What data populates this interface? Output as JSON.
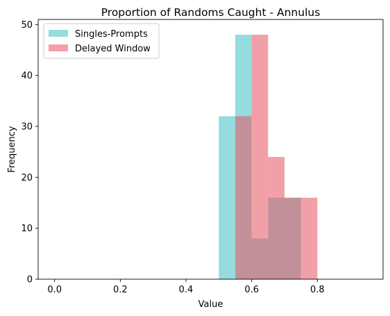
{
  "chart_data": {
    "type": "histogram",
    "title": "Proportion of Randoms Caught - Annulus",
    "xlabel": "Value",
    "ylabel": "Frequency",
    "xlim": [
      -0.05,
      1.0
    ],
    "ylim": [
      0,
      51
    ],
    "xticks": [
      "0.0",
      "0.2",
      "0.4",
      "0.6",
      "0.8"
    ],
    "yticks": [
      "0",
      "10",
      "20",
      "30",
      "40",
      "50"
    ],
    "grid": false,
    "legend_position": "top-left",
    "bin_edges": [
      0.5,
      0.55,
      0.6,
      0.65,
      0.7,
      0.75,
      0.8
    ],
    "series": [
      {
        "name": "Singles-Prompts",
        "color": "#4ec5ca",
        "alpha": 0.6,
        "values": [
          32,
          48,
          8,
          16,
          16,
          0
        ]
      },
      {
        "name": "Delayed Window",
        "color": "#e8525f",
        "alpha": 0.55,
        "values": [
          0,
          32,
          48,
          24,
          16,
          16
        ]
      }
    ]
  }
}
